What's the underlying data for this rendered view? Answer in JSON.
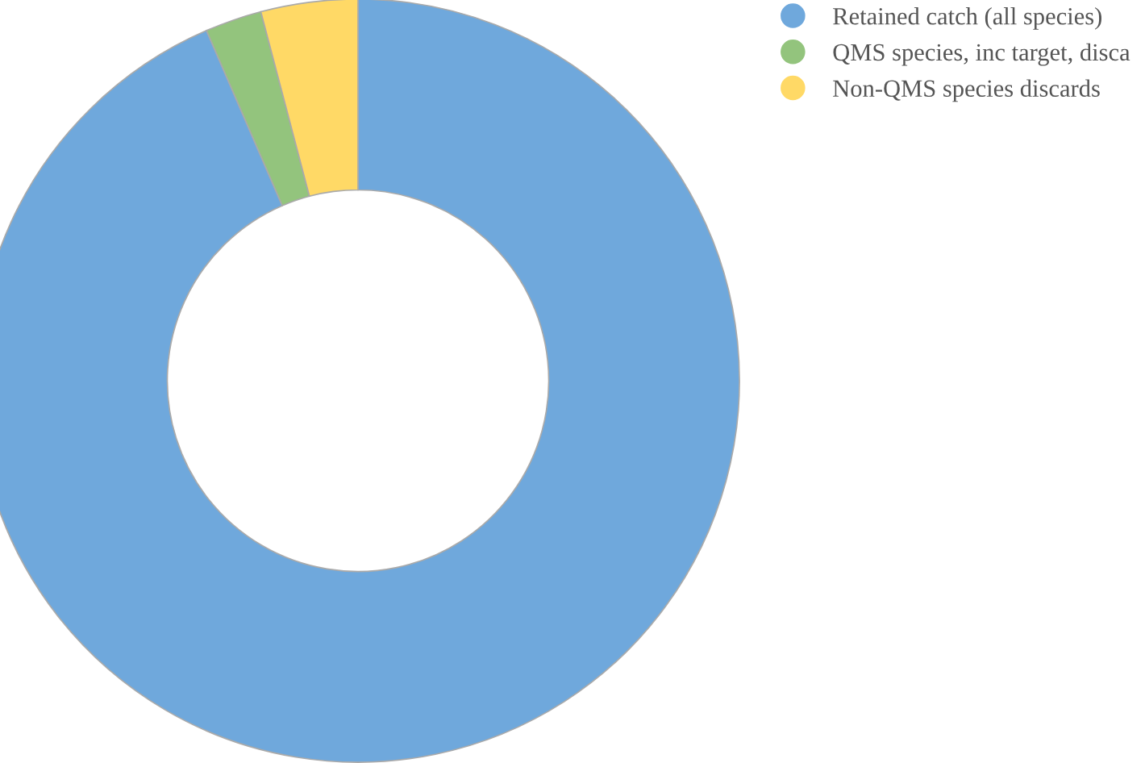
{
  "chart_data": {
    "type": "donut",
    "categories": [
      "Retained catch (all species)",
      "QMS species, inc target, disca",
      "Non-QMS species discards"
    ],
    "values": [
      93.5,
      2.4,
      4.1
    ],
    "colors": [
      "#6fa8dc",
      "#93c47d",
      "#ffd966"
    ],
    "legend": "top right"
  }
}
